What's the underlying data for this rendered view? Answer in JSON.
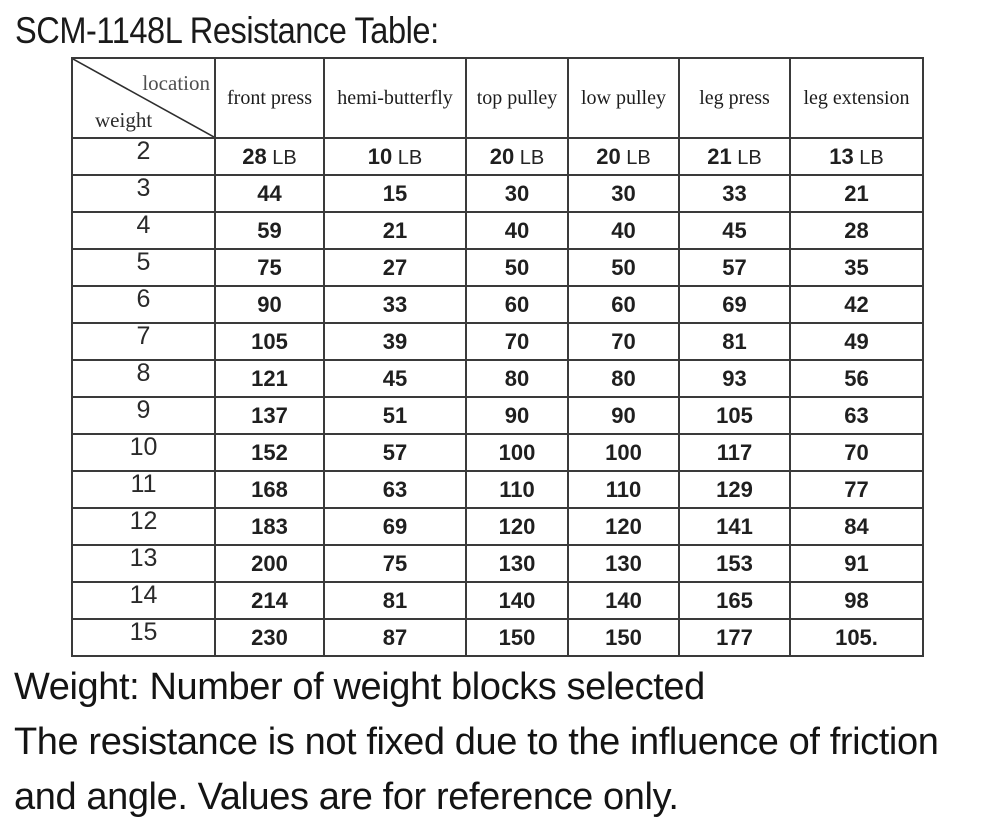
{
  "title": "SCM-1148L Resistance Table:",
  "table": {
    "corner": {
      "top_label": "location",
      "bottom_label": "weight"
    },
    "columns": [
      "front press",
      "hemi-butterfly",
      "top pulley",
      "low pulley",
      "leg press",
      "leg extension"
    ],
    "unit": "LB",
    "rows": [
      {
        "weight": "2",
        "show_unit": true,
        "values": [
          "28",
          "10",
          "20",
          "20",
          "21",
          "13"
        ]
      },
      {
        "weight": "3",
        "show_unit": false,
        "values": [
          "44",
          "15",
          "30",
          "30",
          "33",
          "21"
        ]
      },
      {
        "weight": "4",
        "show_unit": false,
        "values": [
          "59",
          "21",
          "40",
          "40",
          "45",
          "28"
        ]
      },
      {
        "weight": "5",
        "show_unit": false,
        "values": [
          "75",
          "27",
          "50",
          "50",
          "57",
          "35"
        ]
      },
      {
        "weight": "6",
        "show_unit": false,
        "values": [
          "90",
          "33",
          "60",
          "60",
          "69",
          "42"
        ]
      },
      {
        "weight": "7",
        "show_unit": false,
        "values": [
          "105",
          "39",
          "70",
          "70",
          "81",
          "49"
        ]
      },
      {
        "weight": "8",
        "show_unit": false,
        "values": [
          "121",
          "45",
          "80",
          "80",
          "93",
          "56"
        ]
      },
      {
        "weight": "9",
        "show_unit": false,
        "values": [
          "137",
          "51",
          "90",
          "90",
          "105",
          "63"
        ]
      },
      {
        "weight": "10",
        "show_unit": false,
        "values": [
          "152",
          "57",
          "100",
          "100",
          "117",
          "70"
        ]
      },
      {
        "weight": "11",
        "show_unit": false,
        "values": [
          "168",
          "63",
          "110",
          "110",
          "129",
          "77"
        ]
      },
      {
        "weight": "12",
        "show_unit": false,
        "values": [
          "183",
          "69",
          "120",
          "120",
          "141",
          "84"
        ]
      },
      {
        "weight": "13",
        "show_unit": false,
        "values": [
          "200",
          "75",
          "130",
          "130",
          "153",
          "91"
        ]
      },
      {
        "weight": "14",
        "show_unit": false,
        "values": [
          "214",
          "81",
          "140",
          "140",
          "165",
          "98"
        ]
      },
      {
        "weight": "15",
        "show_unit": false,
        "values": [
          "230",
          "87",
          "150",
          "150",
          "177",
          "105."
        ]
      }
    ]
  },
  "notes": [
    "Weight: Number of weight blocks selected",
    "The resistance is not fixed due to the influence of friction",
    "and angle. Values are for reference only."
  ],
  "colors": {
    "text": "#1a1a1a",
    "border": "#3a3a3a",
    "corner_location_label": "#4f4f4f"
  }
}
